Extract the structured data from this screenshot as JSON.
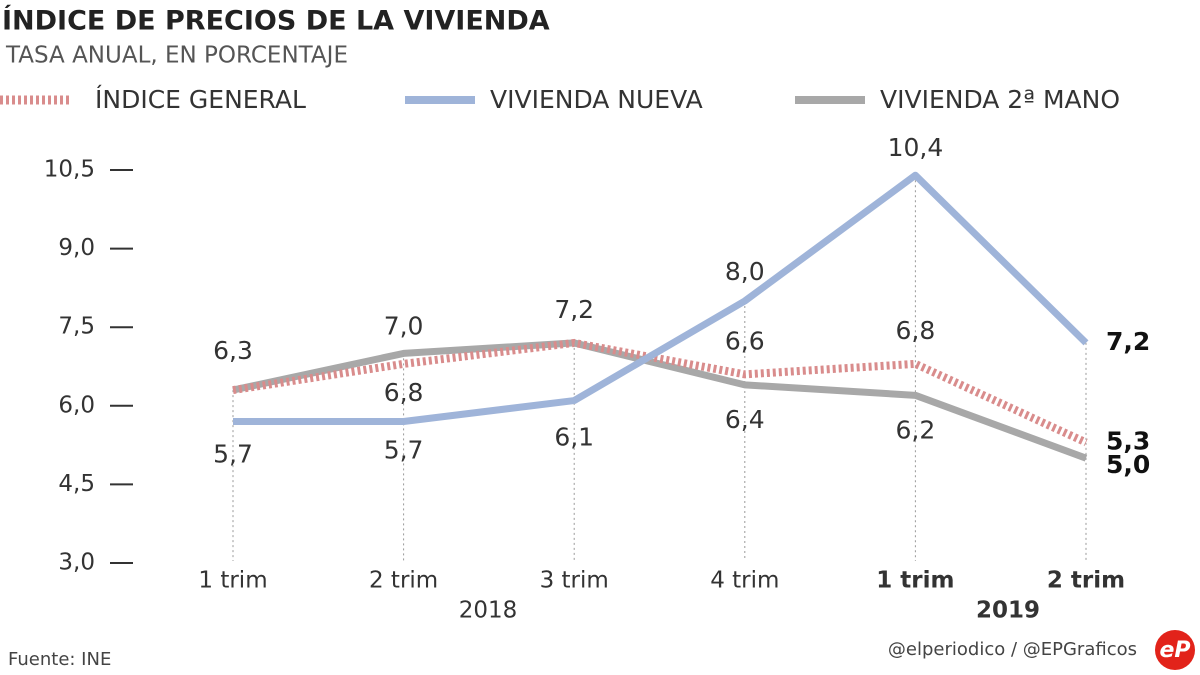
{
  "chart_data": {
    "type": "line",
    "title": "ÍNDICE DE PRECIOS DE LA VIVIENDA",
    "subtitle": "TASA ANUAL, EN PORCENTAJE",
    "categories": [
      "1 trim",
      "2 trim",
      "3 trim",
      "4 trim",
      "1 trim",
      "2 trim"
    ],
    "year_labels": [
      "2018",
      "2019"
    ],
    "series": [
      {
        "name": "ÍNDICE GENERAL",
        "color": "#d98c8c",
        "style": "dotted",
        "values": [
          6.3,
          6.8,
          7.2,
          6.6,
          6.8,
          5.3
        ],
        "value_labels": [
          null,
          "6,8",
          null,
          "6,6",
          "6,8",
          "5,3"
        ]
      },
      {
        "name": "VIVIENDA NUEVA",
        "color": "#9fb4d9",
        "style": "solid",
        "values": [
          5.7,
          5.7,
          6.1,
          8.0,
          10.4,
          7.2
        ],
        "value_labels": [
          "5,7",
          "5,7",
          "6,1",
          "8,0",
          "10,4",
          "7,2"
        ]
      },
      {
        "name": "VIVIENDA 2ª MANO",
        "color": "#a8a8a8",
        "style": "solid",
        "values": [
          6.3,
          7.0,
          7.2,
          6.4,
          6.2,
          5.0
        ],
        "value_labels": [
          "6,3",
          "7,0",
          "7,2",
          "6,4",
          "6,2",
          "5,0"
        ]
      }
    ],
    "ylim": [
      3.0,
      10.5
    ],
    "yticks": [
      {
        "value": 3.0,
        "label": "3,0"
      },
      {
        "value": 4.5,
        "label": "4,5"
      },
      {
        "value": 6.0,
        "label": "6,0"
      },
      {
        "value": 7.5,
        "label": "7,5"
      },
      {
        "value": 9.0,
        "label": "9,0"
      },
      {
        "value": 10.5,
        "label": "10,5"
      }
    ],
    "source": "Fuente: INE",
    "credit": "@elperiodico / @EPGraficos",
    "logo": "eP"
  }
}
